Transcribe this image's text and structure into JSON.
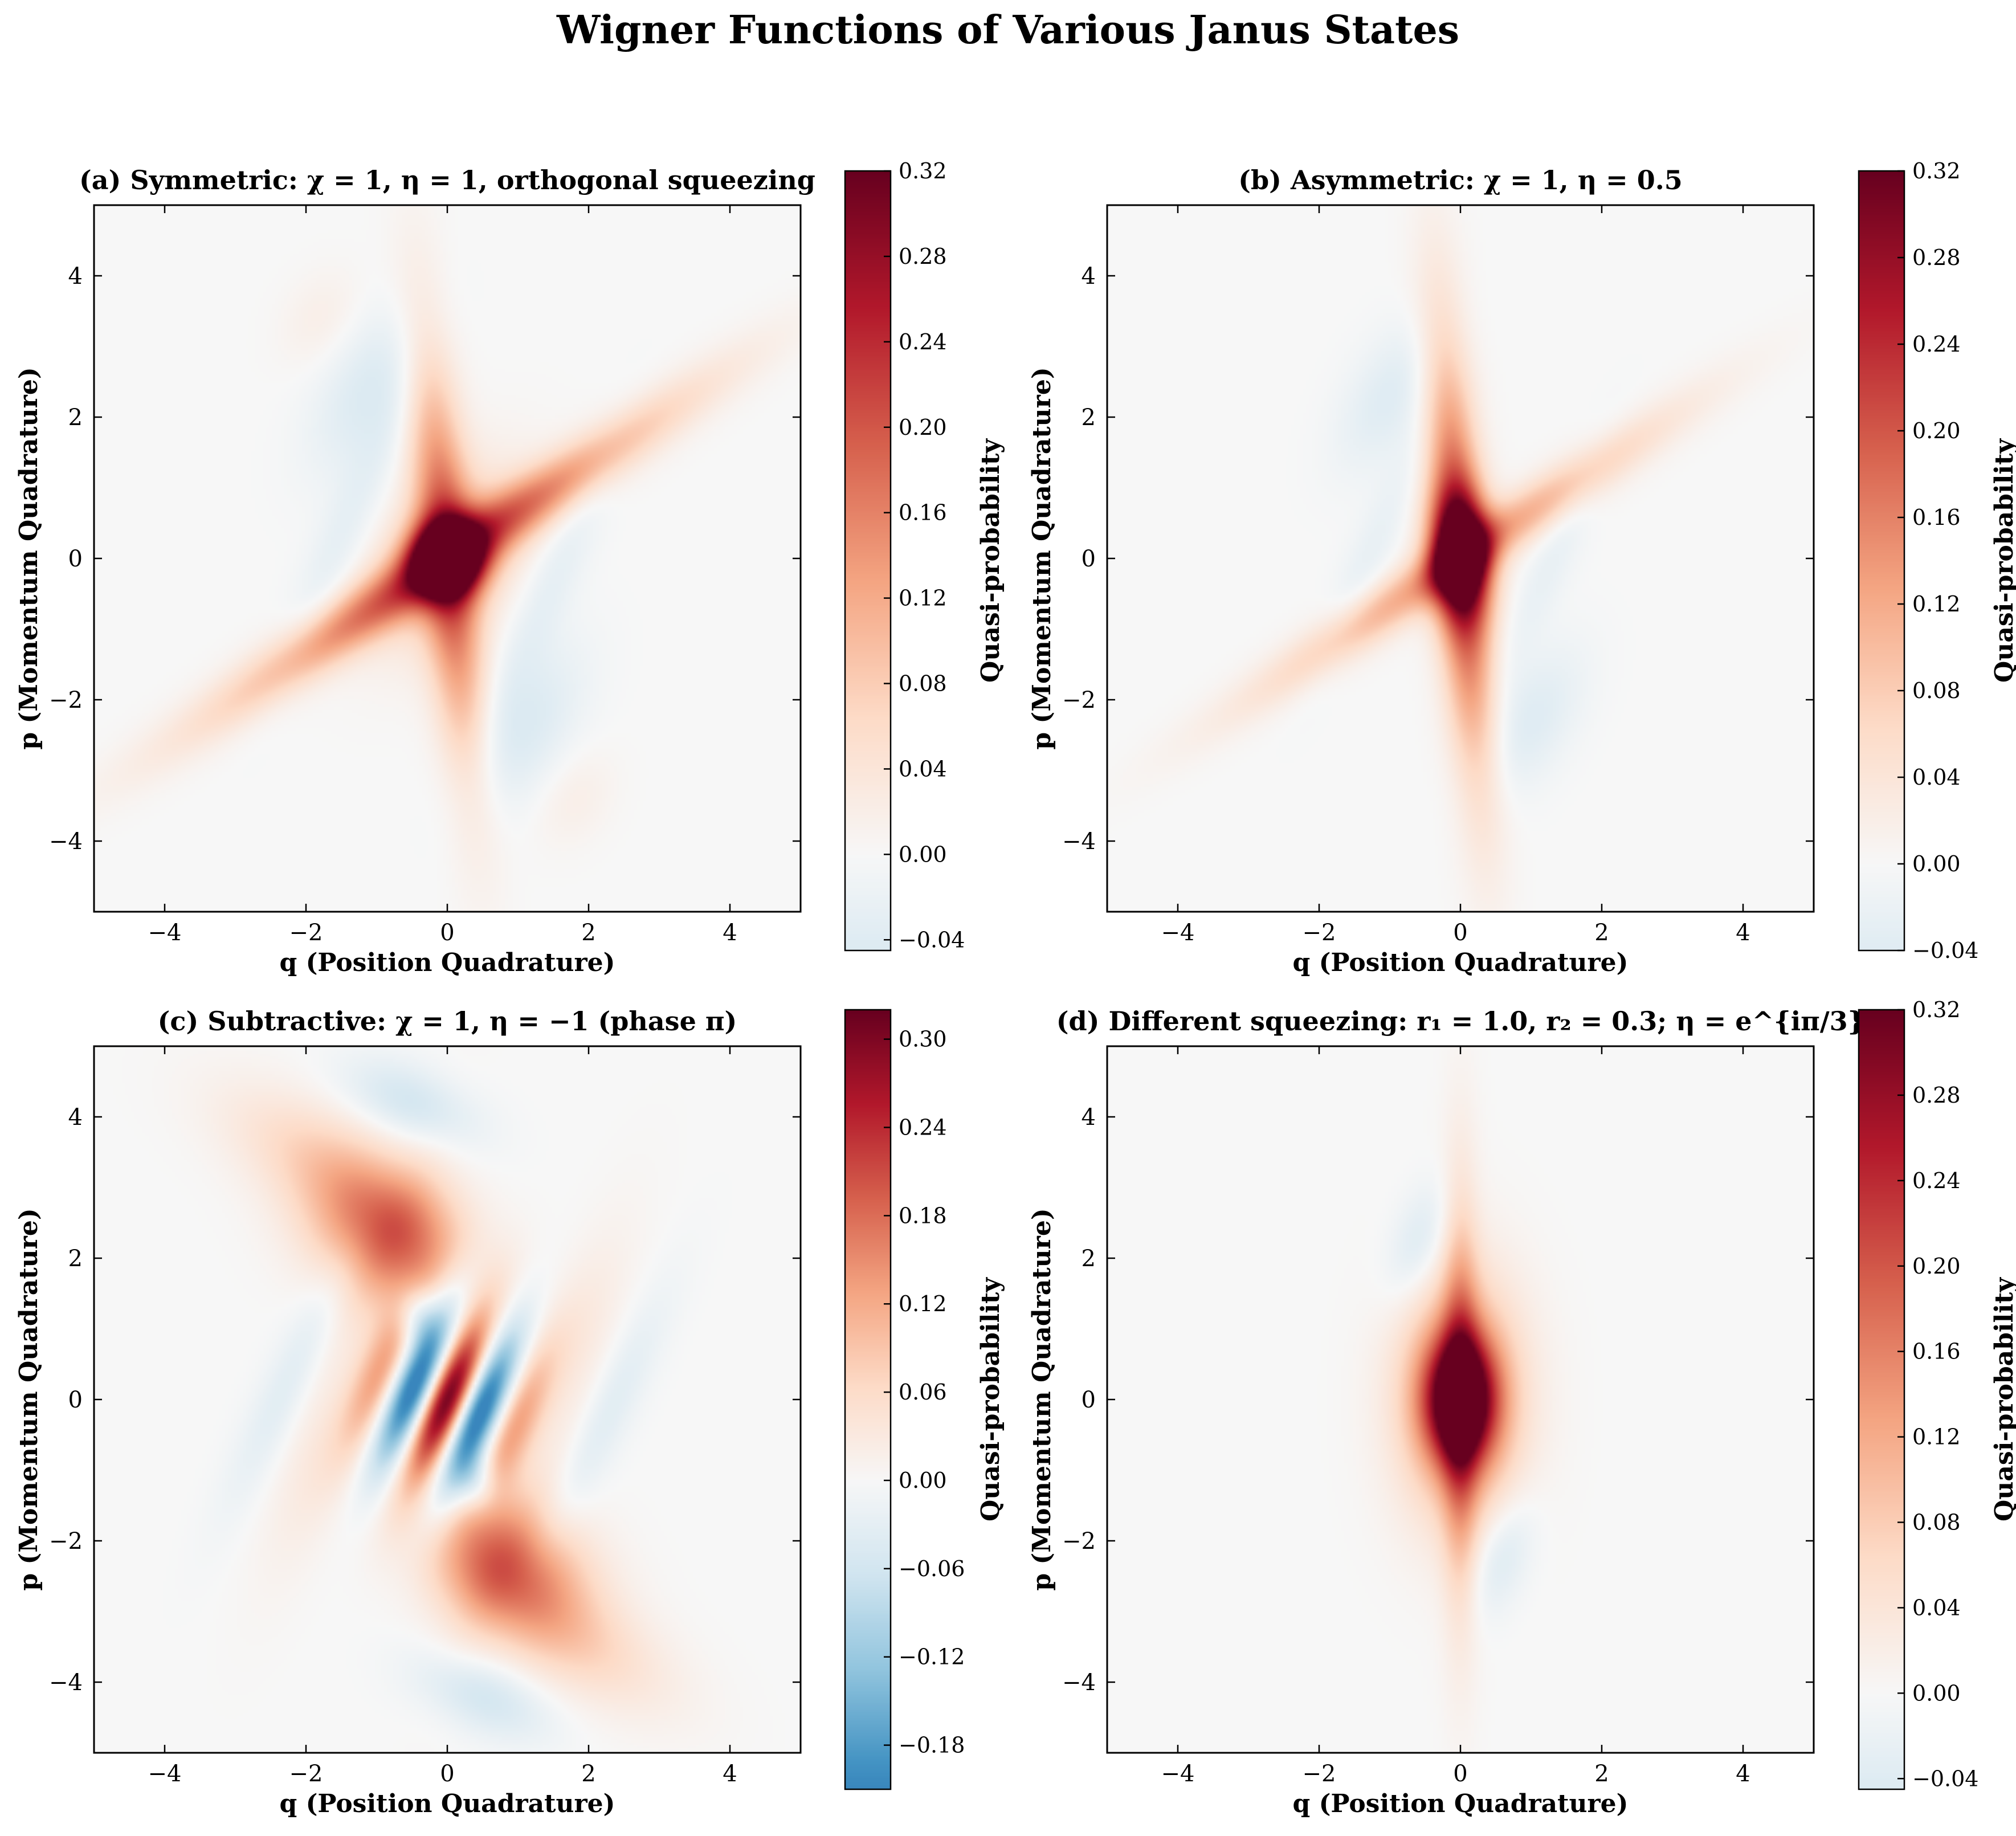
{
  "figure": {
    "title": "Wigner Functions of Various Janus States",
    "colormap_stops": [
      "#053061",
      "#2166ac",
      "#4393c3",
      "#92c5de",
      "#d1e5f0",
      "#f7f7f7",
      "#fddbc7",
      "#f4a582",
      "#d6604d",
      "#b2182b",
      "#67001f"
    ],
    "background_value_color": "#f7f7f7"
  },
  "chart_data": [
    {
      "type": "heatmap",
      "panel": "a",
      "title": "(a) Symmetric: χ = 1, η = 1, orthogonal squeezing",
      "xlabel": "q (Position Quadrature)",
      "ylabel": "p (Momentum Quadrature)",
      "xlim": [
        -5,
        5
      ],
      "ylim": [
        -5,
        5
      ],
      "xticks": [
        -4,
        -2,
        0,
        2,
        4
      ],
      "yticks": [
        -4,
        -2,
        0,
        2,
        4
      ],
      "x_tick_labels": [
        "−4",
        "−2",
        "0",
        "2",
        "4"
      ],
      "y_tick_labels": [
        "−4",
        "−2",
        "0",
        "2",
        "4"
      ],
      "colorbar": {
        "label": "Quasi-probability",
        "vmin": -0.045,
        "vmax": 0.32,
        "ticks": [
          -0.04,
          0.0,
          0.04,
          0.08,
          0.12,
          0.16,
          0.2,
          0.24,
          0.28,
          0.32
        ],
        "tick_labels": [
          "−0.04",
          "0.00",
          "0.04",
          "0.08",
          "0.12",
          "0.16",
          "0.20",
          "0.24",
          "0.28",
          "0.32"
        ]
      },
      "peak_value": 0.32,
      "min_value": -0.045
    },
    {
      "type": "heatmap",
      "panel": "b",
      "title": "(b) Asymmetric: χ = 1, η = 0.5",
      "xlabel": "q (Position Quadrature)",
      "ylabel": "p (Momentum Quadrature)",
      "xlim": [
        -5,
        5
      ],
      "ylim": [
        -5,
        5
      ],
      "xticks": [
        -4,
        -2,
        0,
        2,
        4
      ],
      "yticks": [
        -4,
        -2,
        0,
        2,
        4
      ],
      "x_tick_labels": [
        "−4",
        "−2",
        "0",
        "2",
        "4"
      ],
      "y_tick_labels": [
        "−4",
        "−2",
        "0",
        "2",
        "4"
      ],
      "colorbar": {
        "label": "Quasi-probability",
        "vmin": -0.04,
        "vmax": 0.32,
        "ticks": [
          -0.04,
          0.0,
          0.04,
          0.08,
          0.12,
          0.16,
          0.2,
          0.24,
          0.28,
          0.32
        ],
        "tick_labels": [
          "−0.04",
          "0.00",
          "0.04",
          "0.08",
          "0.12",
          "0.16",
          "0.20",
          "0.24",
          "0.28",
          "0.32"
        ]
      },
      "peak_value": 0.32,
      "min_value": -0.04
    },
    {
      "type": "heatmap",
      "panel": "c",
      "title": "(c) Subtractive: χ = 1, η = −1 (phase π)",
      "xlabel": "q (Position Quadrature)",
      "ylabel": "p (Momentum Quadrature)",
      "xlim": [
        -5,
        5
      ],
      "ylim": [
        -5,
        5
      ],
      "xticks": [
        -4,
        -2,
        0,
        2,
        4
      ],
      "yticks": [
        -4,
        -2,
        0,
        2,
        4
      ],
      "x_tick_labels": [
        "−4",
        "−2",
        "0",
        "2",
        "4"
      ],
      "y_tick_labels": [
        "−4",
        "−2",
        "0",
        "2",
        "4"
      ],
      "colorbar": {
        "label": "Quasi-probability",
        "vmin": -0.21,
        "vmax": 0.32,
        "ticks": [
          -0.18,
          -0.12,
          -0.06,
          0.0,
          0.06,
          0.12,
          0.18,
          0.24,
          0.3
        ],
        "tick_labels": [
          "−0.18",
          "−0.12",
          "−0.06",
          "0.00",
          "0.06",
          "0.12",
          "0.18",
          "0.24",
          "0.30"
        ]
      },
      "peak_value": 0.32,
      "min_value": -0.21
    },
    {
      "type": "heatmap",
      "panel": "d",
      "title": "(d) Different squeezing: r₁ = 1.0, r₂ = 0.3; η = e^{iπ/3}",
      "xlabel": "q (Position Quadrature)",
      "ylabel": "p (Momentum Quadrature)",
      "xlim": [
        -5,
        5
      ],
      "ylim": [
        -5,
        5
      ],
      "xticks": [
        -4,
        -2,
        0,
        2,
        4
      ],
      "yticks": [
        -4,
        -2,
        0,
        2,
        4
      ],
      "x_tick_labels": [
        "−4",
        "−2",
        "0",
        "2",
        "4"
      ],
      "y_tick_labels": [
        "−4",
        "−2",
        "0",
        "2",
        "4"
      ],
      "colorbar": {
        "label": "Quasi-probability",
        "vmin": -0.045,
        "vmax": 0.32,
        "ticks": [
          -0.04,
          0.0,
          0.04,
          0.08,
          0.12,
          0.16,
          0.2,
          0.24,
          0.28,
          0.32
        ],
        "tick_labels": [
          "−0.04",
          "0.00",
          "0.04",
          "0.08",
          "0.12",
          "0.16",
          "0.20",
          "0.24",
          "0.28",
          "0.32"
        ]
      },
      "peak_value": 0.32,
      "min_value": -0.045
    }
  ]
}
